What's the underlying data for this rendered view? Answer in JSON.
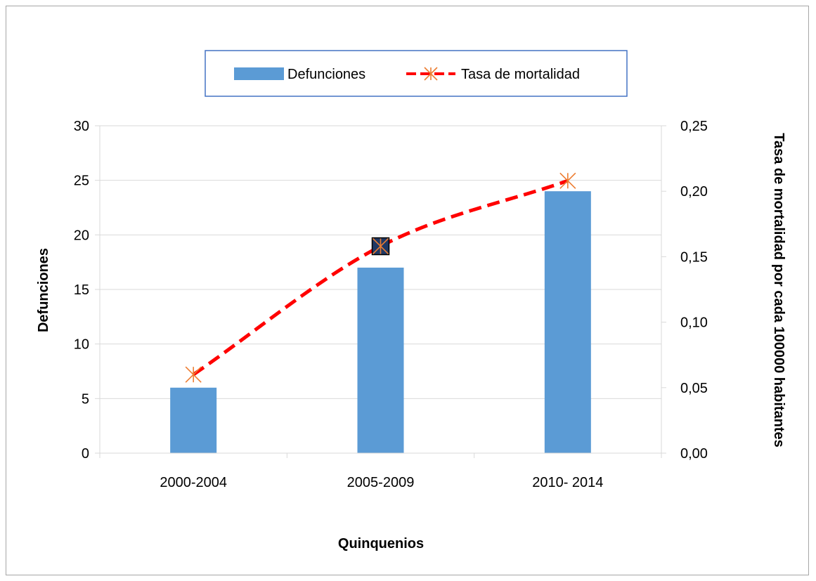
{
  "chart_data": {
    "type": "bar",
    "categories": [
      "2000-2004",
      "2005-2009",
      "2010- 2014"
    ],
    "series": [
      {
        "name": "Defunciones",
        "type": "bar",
        "axis": "left",
        "values": [
          6,
          17,
          24
        ],
        "color": "#5b9bd5"
      },
      {
        "name": "Tasa de mortalidad",
        "type": "line",
        "axis": "right",
        "values": [
          0.06,
          0.158,
          0.208
        ],
        "color": "#ff0000",
        "marker_color": "#ed7d31",
        "line_style": "dashed"
      }
    ],
    "xlabel": "Quinquenios",
    "ylabel": "Defunciones",
    "y2label": "Tasa de mortalidad por cada 100000 habitantes",
    "ylim": [
      0,
      30
    ],
    "y2lim": [
      0,
      0.25
    ],
    "yticks": [
      "0",
      "5",
      "10",
      "15",
      "20",
      "25",
      "30"
    ],
    "y2ticks": [
      "0,00",
      "0,05",
      "0,10",
      "0,15",
      "0,20",
      "0,25"
    ],
    "grid": true,
    "legend_position": "top"
  },
  "colors": {
    "gridline": "#d9d9d9",
    "legend_border": "#4472c4",
    "frame": "#a6a6a6",
    "highlight_marker": "#1f3864"
  }
}
